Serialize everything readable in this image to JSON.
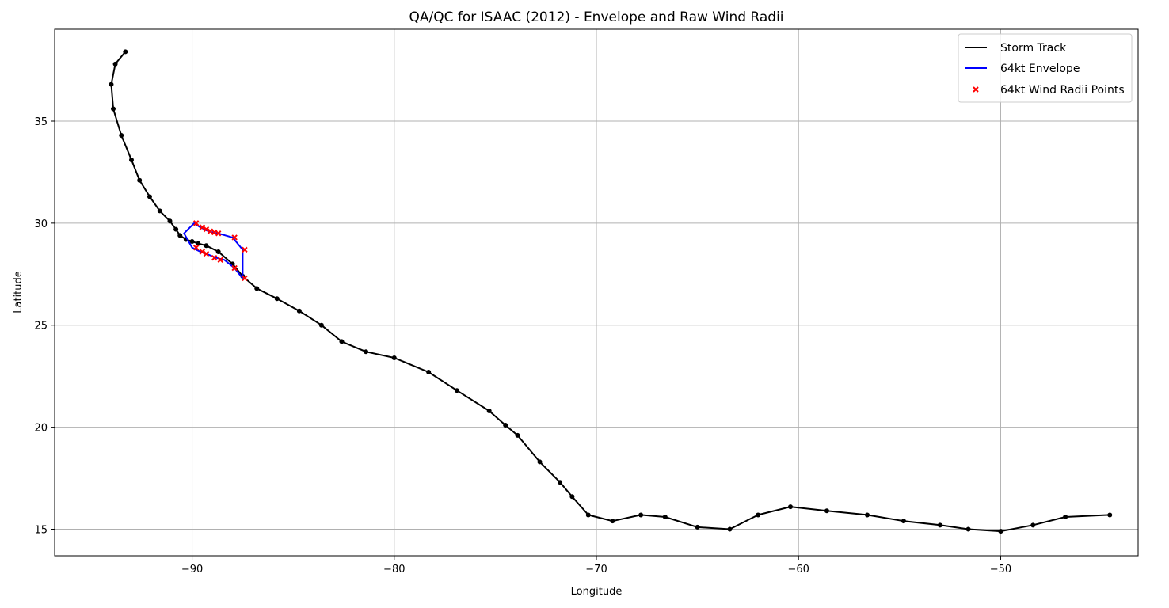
{
  "chart_data": {
    "type": "line",
    "title": "QA/QC for ISAAC (2012) - Envelope and Raw Wind Radii",
    "xlabel": "Longitude",
    "ylabel": "Latitude",
    "xlim": [
      -96.8,
      -43.2
    ],
    "ylim": [
      13.7,
      39.5
    ],
    "xticks": [
      -90,
      -80,
      -70,
      -60,
      -50
    ],
    "yticks": [
      15,
      20,
      25,
      30,
      35
    ],
    "xtick_labels": [
      "−90",
      "−80",
      "−70",
      "−60",
      "−50"
    ],
    "ytick_labels": [
      "15",
      "20",
      "25",
      "30",
      "35"
    ],
    "grid": true,
    "legend_position": "top-right",
    "series": [
      {
        "name": "Storm Track",
        "kind": "line-with-markers",
        "color": "#000000",
        "x": [
          -44.6,
          -46.8,
          -48.4,
          -50.0,
          -51.6,
          -53.0,
          -54.8,
          -56.6,
          -58.6,
          -60.4,
          -62.0,
          -63.4,
          -65.0,
          -66.6,
          -67.8,
          -69.2,
          -70.4,
          -71.2,
          -71.8,
          -72.8,
          -73.9,
          -74.5,
          -75.3,
          -76.9,
          -78.3,
          -80.0,
          -81.4,
          -82.6,
          -83.6,
          -84.7,
          -85.8,
          -86.8,
          -87.5,
          -88.0,
          -88.7,
          -89.3,
          -89.7,
          -90.0,
          -90.3,
          -90.6,
          -90.8,
          -91.1,
          -91.6,
          -92.1,
          -92.6,
          -93.0,
          -93.5,
          -93.9,
          -94.0,
          -93.8,
          -93.3
        ],
        "y": [
          15.7,
          15.6,
          15.2,
          14.9,
          15.0,
          15.2,
          15.4,
          15.7,
          15.9,
          16.1,
          15.7,
          15.0,
          15.1,
          15.6,
          15.7,
          15.4,
          15.7,
          16.6,
          17.3,
          18.3,
          19.6,
          20.1,
          20.8,
          21.8,
          22.7,
          23.4,
          23.7,
          24.2,
          25.0,
          25.7,
          26.3,
          26.8,
          27.4,
          28.0,
          28.6,
          28.9,
          29.0,
          29.1,
          29.2,
          29.4,
          29.7,
          30.1,
          30.6,
          31.3,
          32.1,
          33.1,
          34.3,
          35.6,
          36.8,
          37.8,
          38.4
        ]
      },
      {
        "name": "64kt Envelope",
        "kind": "line",
        "color": "#0000ff",
        "x": [
          -87.5,
          -87.5,
          -88.0,
          -88.7,
          -89.0,
          -89.3,
          -89.6,
          -89.9,
          -90.4,
          -90.0,
          -89.6,
          -89.3,
          -88.8,
          -88.4,
          -87.9,
          -87.5
        ],
        "y": [
          27.3,
          28.7,
          29.3,
          29.5,
          29.55,
          29.65,
          29.8,
          30.0,
          29.5,
          28.8,
          28.6,
          28.5,
          28.3,
          28.2,
          27.8,
          27.3
        ]
      },
      {
        "name": "64kt Wind Radii Points",
        "kind": "scatter-x",
        "color": "#ff0000",
        "x": [
          -89.8,
          -89.5,
          -89.3,
          -89.1,
          -88.9,
          -88.7,
          -87.9,
          -87.4,
          -89.8,
          -89.5,
          -89.3,
          -88.9,
          -88.6,
          -87.9,
          -87.4
        ],
        "y": [
          30.0,
          29.8,
          29.7,
          29.6,
          29.55,
          29.5,
          29.3,
          28.7,
          28.8,
          28.6,
          28.5,
          28.3,
          28.2,
          27.8,
          27.3
        ]
      }
    ]
  }
}
